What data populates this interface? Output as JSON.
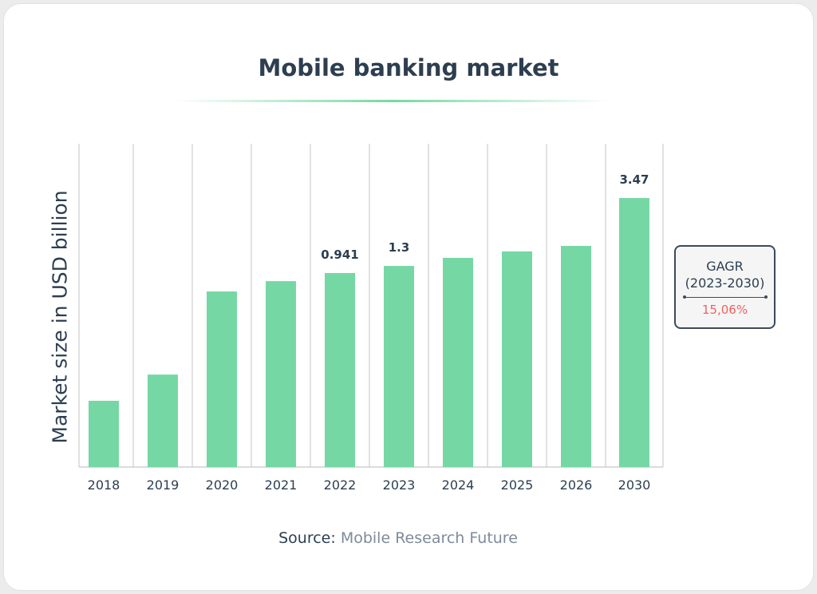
{
  "chart_data": {
    "type": "bar",
    "title": "Mobile banking market",
    "xlabel": "",
    "ylabel": "Market size in USD billion",
    "categories": [
      "2018",
      "2019",
      "2020",
      "2021",
      "2022",
      "2023",
      "2024",
      "2025",
      "2026",
      "2030"
    ],
    "data_labels": [
      "",
      "",
      "",
      "",
      "0.941",
      "1.3",
      "",
      "",
      "",
      "3.47"
    ],
    "display_level": [
      0.205,
      0.286,
      0.543,
      0.575,
      0.6,
      0.622,
      0.647,
      0.667,
      0.684,
      0.832
    ],
    "grid": "vertical",
    "bar_color": "#75d8a4",
    "annotation": {
      "title": "GAGR",
      "period": "(2023-2030)",
      "value": "15,06%",
      "value_color": "#f2615f"
    },
    "source_label": "Source:",
    "source": "Mobile Research Future"
  }
}
